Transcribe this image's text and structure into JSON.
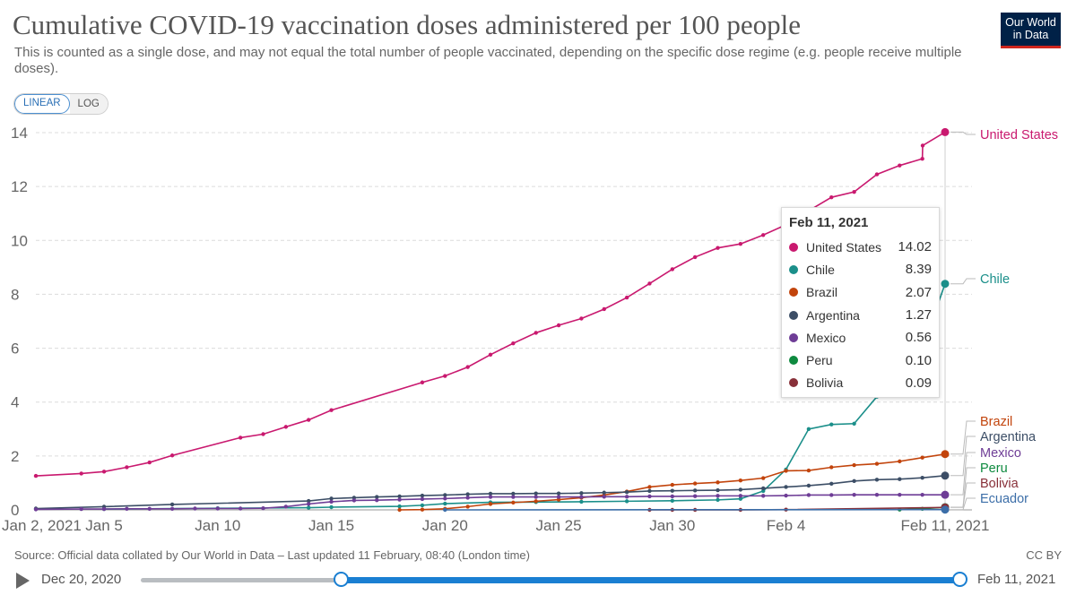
{
  "header": {
    "title": "Cumulative COVID-19 vaccination doses administered per 100 people",
    "subtitle": "This is counted as a single dose, and may not equal the total number of people vaccinated, depending on the specific dose regime (e.g. people receive multiple doses).",
    "logo_line1": "Our World",
    "logo_line2": "in Data"
  },
  "scale_toggle": {
    "linear": "LINEAR",
    "log": "LOG",
    "active": "LINEAR"
  },
  "footer": {
    "source": "Source: Official data collated by Our World in Data – Last updated 11 February, 08:40 (London time)",
    "license": "CC BY"
  },
  "timeline": {
    "start_label": "Dec 20, 2020",
    "end_label": "Feb 11, 2021"
  },
  "tooltip": {
    "date": "Feb 11, 2021",
    "rows": [
      {
        "name": "United States",
        "value": "14.02",
        "color": "#c9196f"
      },
      {
        "name": "Chile",
        "value": "8.39",
        "color": "#1b8f8a"
      },
      {
        "name": "Brazil",
        "value": "2.07",
        "color": "#c2440c"
      },
      {
        "name": "Argentina",
        "value": "1.27",
        "color": "#3c4e66"
      },
      {
        "name": "Mexico",
        "value": "0.56",
        "color": "#6e3d96"
      },
      {
        "name": "Peru",
        "value": "0.10",
        "color": "#0e8a3f"
      },
      {
        "name": "Bolivia",
        "value": "0.09",
        "color": "#883039"
      }
    ]
  },
  "chart_data": {
    "type": "line",
    "title": "Cumulative COVID-19 vaccination doses administered per 100 people",
    "xlabel": "",
    "ylabel": "",
    "ylim": [
      0,
      14
    ],
    "yticks": [
      0,
      2,
      4,
      6,
      8,
      10,
      12,
      14
    ],
    "xlim": [
      "2021-01-02",
      "2021-02-11"
    ],
    "xticks": [
      {
        "date": "2021-01-02",
        "label": "Jan 2, 2021"
      },
      {
        "date": "2021-01-05",
        "label": "Jan 5"
      },
      {
        "date": "2021-01-10",
        "label": "Jan 10"
      },
      {
        "date": "2021-01-15",
        "label": "Jan 15"
      },
      {
        "date": "2021-01-20",
        "label": "Jan 20"
      },
      {
        "date": "2021-01-25",
        "label": "Jan 25"
      },
      {
        "date": "2021-01-30",
        "label": "Jan 30"
      },
      {
        "date": "2021-02-04",
        "label": "Feb 4"
      },
      {
        "date": "2021-02-11",
        "label": "Feb 11, 2021"
      }
    ],
    "grid": true,
    "legend": "end-labels-right",
    "series": [
      {
        "name": "United States",
        "color": "#c9196f",
        "points": [
          [
            "2021-01-02",
            1.26
          ],
          [
            "2021-01-04",
            1.35
          ],
          [
            "2021-01-05",
            1.42
          ],
          [
            "2021-01-06",
            1.58
          ],
          [
            "2021-01-07",
            1.76
          ],
          [
            "2021-01-08",
            2.02
          ],
          [
            "2021-01-11",
            2.68
          ],
          [
            "2021-01-12",
            2.81
          ],
          [
            "2021-01-13",
            3.08
          ],
          [
            "2021-01-14",
            3.34
          ],
          [
            "2021-01-15",
            3.7
          ],
          [
            "2021-01-19",
            4.73
          ],
          [
            "2021-01-20",
            4.97
          ],
          [
            "2021-01-21",
            5.3
          ],
          [
            "2021-01-22",
            5.76
          ],
          [
            "2021-01-23",
            6.18
          ],
          [
            "2021-01-24",
            6.57
          ],
          [
            "2021-01-25",
            6.85
          ],
          [
            "2021-01-26",
            7.1
          ],
          [
            "2021-01-27",
            7.45
          ],
          [
            "2021-01-28",
            7.88
          ],
          [
            "2021-01-29",
            8.4
          ],
          [
            "2021-01-30",
            8.93
          ],
          [
            "2021-01-31",
            9.38
          ],
          [
            "2021-02-01",
            9.72
          ],
          [
            "2021-02-02",
            9.87
          ],
          [
            "2021-02-03",
            10.2
          ],
          [
            "2021-02-04",
            10.58
          ],
          [
            "2021-02-05",
            11.1
          ],
          [
            "2021-02-06",
            11.6
          ],
          [
            "2021-02-07",
            11.8
          ],
          [
            "2021-02-08",
            12.45
          ],
          [
            "2021-02-09",
            12.78
          ],
          [
            "2021-02-10",
            13.03
          ],
          [
            "2021-02-11",
            13.52
          ],
          [
            "2021-02-11",
            14.02
          ]
        ]
      },
      {
        "name": "Chile",
        "color": "#1b8f8a",
        "points": [
          [
            "2021-01-05",
            0.03
          ],
          [
            "2021-01-10",
            0.06
          ],
          [
            "2021-01-14",
            0.08
          ],
          [
            "2021-01-15",
            0.1
          ],
          [
            "2021-01-18",
            0.13
          ],
          [
            "2021-01-19",
            0.17
          ],
          [
            "2021-01-20",
            0.23
          ],
          [
            "2021-01-22",
            0.28
          ],
          [
            "2021-01-24",
            0.29
          ],
          [
            "2021-01-26",
            0.3
          ],
          [
            "2021-01-28",
            0.32
          ],
          [
            "2021-01-30",
            0.34
          ],
          [
            "2021-02-01",
            0.37
          ],
          [
            "2021-02-02",
            0.41
          ],
          [
            "2021-02-03",
            0.7
          ],
          [
            "2021-02-04",
            1.5
          ],
          [
            "2021-02-05",
            3.0
          ],
          [
            "2021-02-06",
            3.17
          ],
          [
            "2021-02-07",
            3.2
          ],
          [
            "2021-02-08",
            4.2
          ],
          [
            "2021-02-09",
            5.1
          ],
          [
            "2021-02-10",
            6.0
          ],
          [
            "2021-02-11",
            8.39
          ]
        ]
      },
      {
        "name": "Brazil",
        "color": "#c2440c",
        "points": [
          [
            "2021-01-18",
            0.0
          ],
          [
            "2021-01-19",
            0.01
          ],
          [
            "2021-01-20",
            0.04
          ],
          [
            "2021-01-21",
            0.12
          ],
          [
            "2021-01-22",
            0.22
          ],
          [
            "2021-01-23",
            0.27
          ],
          [
            "2021-01-24",
            0.32
          ],
          [
            "2021-01-25",
            0.38
          ],
          [
            "2021-01-26",
            0.45
          ],
          [
            "2021-01-27",
            0.55
          ],
          [
            "2021-01-28",
            0.68
          ],
          [
            "2021-01-29",
            0.85
          ],
          [
            "2021-01-30",
            0.93
          ],
          [
            "2021-01-31",
            0.98
          ],
          [
            "2021-02-01",
            1.02
          ],
          [
            "2021-02-02",
            1.09
          ],
          [
            "2021-02-03",
            1.18
          ],
          [
            "2021-02-04",
            1.45
          ],
          [
            "2021-02-05",
            1.46
          ],
          [
            "2021-02-06",
            1.58
          ],
          [
            "2021-02-07",
            1.66
          ],
          [
            "2021-02-08",
            1.71
          ],
          [
            "2021-02-09",
            1.8
          ],
          [
            "2021-02-10",
            1.94
          ],
          [
            "2021-02-11",
            2.07
          ]
        ]
      },
      {
        "name": "Argentina",
        "color": "#3c4e66",
        "points": [
          [
            "2021-01-02",
            0.05
          ],
          [
            "2021-01-05",
            0.12
          ],
          [
            "2021-01-08",
            0.2
          ],
          [
            "2021-01-14",
            0.33
          ],
          [
            "2021-01-15",
            0.42
          ],
          [
            "2021-01-16",
            0.45
          ],
          [
            "2021-01-17",
            0.48
          ],
          [
            "2021-01-18",
            0.5
          ],
          [
            "2021-01-19",
            0.53
          ],
          [
            "2021-01-20",
            0.55
          ],
          [
            "2021-01-21",
            0.58
          ],
          [
            "2021-01-22",
            0.6
          ],
          [
            "2021-01-23",
            0.6
          ],
          [
            "2021-01-24",
            0.61
          ],
          [
            "2021-01-25",
            0.61
          ],
          [
            "2021-01-26",
            0.62
          ],
          [
            "2021-01-27",
            0.64
          ],
          [
            "2021-01-28",
            0.66
          ],
          [
            "2021-01-29",
            0.7
          ],
          [
            "2021-01-30",
            0.71
          ],
          [
            "2021-01-31",
            0.72
          ],
          [
            "2021-02-01",
            0.73
          ],
          [
            "2021-02-02",
            0.75
          ],
          [
            "2021-02-03",
            0.8
          ],
          [
            "2021-02-04",
            0.85
          ],
          [
            "2021-02-05",
            0.9
          ],
          [
            "2021-02-06",
            0.97
          ],
          [
            "2021-02-07",
            1.07
          ],
          [
            "2021-02-08",
            1.12
          ],
          [
            "2021-02-09",
            1.14
          ],
          [
            "2021-02-10",
            1.19
          ],
          [
            "2021-02-11",
            1.27
          ]
        ]
      },
      {
        "name": "Mexico",
        "color": "#6e3d96",
        "points": [
          [
            "2021-01-02",
            0.02
          ],
          [
            "2021-01-04",
            0.03
          ],
          [
            "2021-01-05",
            0.03
          ],
          [
            "2021-01-06",
            0.04
          ],
          [
            "2021-01-07",
            0.04
          ],
          [
            "2021-01-08",
            0.04
          ],
          [
            "2021-01-09",
            0.05
          ],
          [
            "2021-01-10",
            0.05
          ],
          [
            "2021-01-11",
            0.05
          ],
          [
            "2021-01-12",
            0.06
          ],
          [
            "2021-01-13",
            0.12
          ],
          [
            "2021-01-14",
            0.22
          ],
          [
            "2021-01-15",
            0.3
          ],
          [
            "2021-01-16",
            0.35
          ],
          [
            "2021-01-17",
            0.36
          ],
          [
            "2021-01-18",
            0.38
          ],
          [
            "2021-01-19",
            0.4
          ],
          [
            "2021-01-20",
            0.42
          ],
          [
            "2021-01-21",
            0.45
          ],
          [
            "2021-01-22",
            0.48
          ],
          [
            "2021-01-23",
            0.48
          ],
          [
            "2021-01-24",
            0.48
          ],
          [
            "2021-01-25",
            0.48
          ],
          [
            "2021-01-26",
            0.48
          ],
          [
            "2021-01-27",
            0.49
          ],
          [
            "2021-01-28",
            0.49
          ],
          [
            "2021-01-29",
            0.5
          ],
          [
            "2021-01-30",
            0.5
          ],
          [
            "2021-01-31",
            0.51
          ],
          [
            "2021-02-01",
            0.52
          ],
          [
            "2021-02-02",
            0.52
          ],
          [
            "2021-02-03",
            0.52
          ],
          [
            "2021-02-04",
            0.53
          ],
          [
            "2021-02-05",
            0.55
          ],
          [
            "2021-02-06",
            0.55
          ],
          [
            "2021-02-07",
            0.56
          ],
          [
            "2021-02-08",
            0.56
          ],
          [
            "2021-02-09",
            0.56
          ],
          [
            "2021-02-10",
            0.56
          ],
          [
            "2021-02-11",
            0.56
          ]
        ]
      },
      {
        "name": "Peru",
        "color": "#0e8a3f",
        "points": [
          [
            "2021-02-09",
            0.01
          ],
          [
            "2021-02-10",
            0.04
          ],
          [
            "2021-02-11",
            0.1
          ]
        ]
      },
      {
        "name": "Bolivia",
        "color": "#883039",
        "points": [
          [
            "2021-01-29",
            0.0
          ],
          [
            "2021-01-30",
            0.0
          ],
          [
            "2021-01-31",
            0.0
          ],
          [
            "2021-02-02",
            0.0
          ],
          [
            "2021-02-04",
            0.01
          ],
          [
            "2021-02-11",
            0.09
          ]
        ]
      },
      {
        "name": "Ecuador",
        "color": "#3c6ea8",
        "points": [
          [
            "2021-01-20",
            0.0
          ],
          [
            "2021-02-11",
            0.01
          ]
        ]
      }
    ],
    "end_labels": [
      {
        "name": "United States",
        "color": "#c9196f"
      },
      {
        "name": "Chile",
        "color": "#1b8f8a"
      },
      {
        "name": "Brazil",
        "color": "#c2440c"
      },
      {
        "name": "Argentina",
        "color": "#3c4e66"
      },
      {
        "name": "Mexico",
        "color": "#6e3d96"
      },
      {
        "name": "Peru",
        "color": "#0e8a3f"
      },
      {
        "name": "Bolivia",
        "color": "#883039"
      },
      {
        "name": "Ecuador",
        "color": "#3c6ea8"
      }
    ]
  }
}
